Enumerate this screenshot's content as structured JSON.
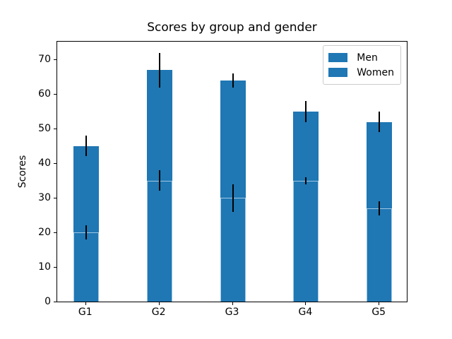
{
  "chart_data": {
    "type": "bar",
    "stacked": true,
    "title": "Scores by group and gender",
    "xlabel": "",
    "ylabel": "Scores",
    "categories": [
      "G1",
      "G2",
      "G3",
      "G4",
      "G5"
    ],
    "series": [
      {
        "name": "Men",
        "values": [
          20,
          35,
          30,
          35,
          27
        ],
        "std": [
          2,
          3,
          4,
          1,
          2
        ]
      },
      {
        "name": "Women",
        "values": [
          25,
          32,
          34,
          20,
          25
        ],
        "std": [
          3,
          5,
          2,
          3,
          3
        ]
      }
    ],
    "totals": [
      45,
      67,
      64,
      55,
      52
    ],
    "yticks": [
      0,
      10,
      20,
      30,
      40,
      50,
      60,
      70
    ],
    "ylim": [
      0,
      75.6
    ],
    "grid": false,
    "legend_position": "upper right",
    "colors": {
      "bar_fill": "#1f77b4",
      "bar_edge": "#9ec7e4",
      "error_bar": "#000000",
      "spine": "#000000",
      "legend_border": "#cccccc"
    }
  }
}
